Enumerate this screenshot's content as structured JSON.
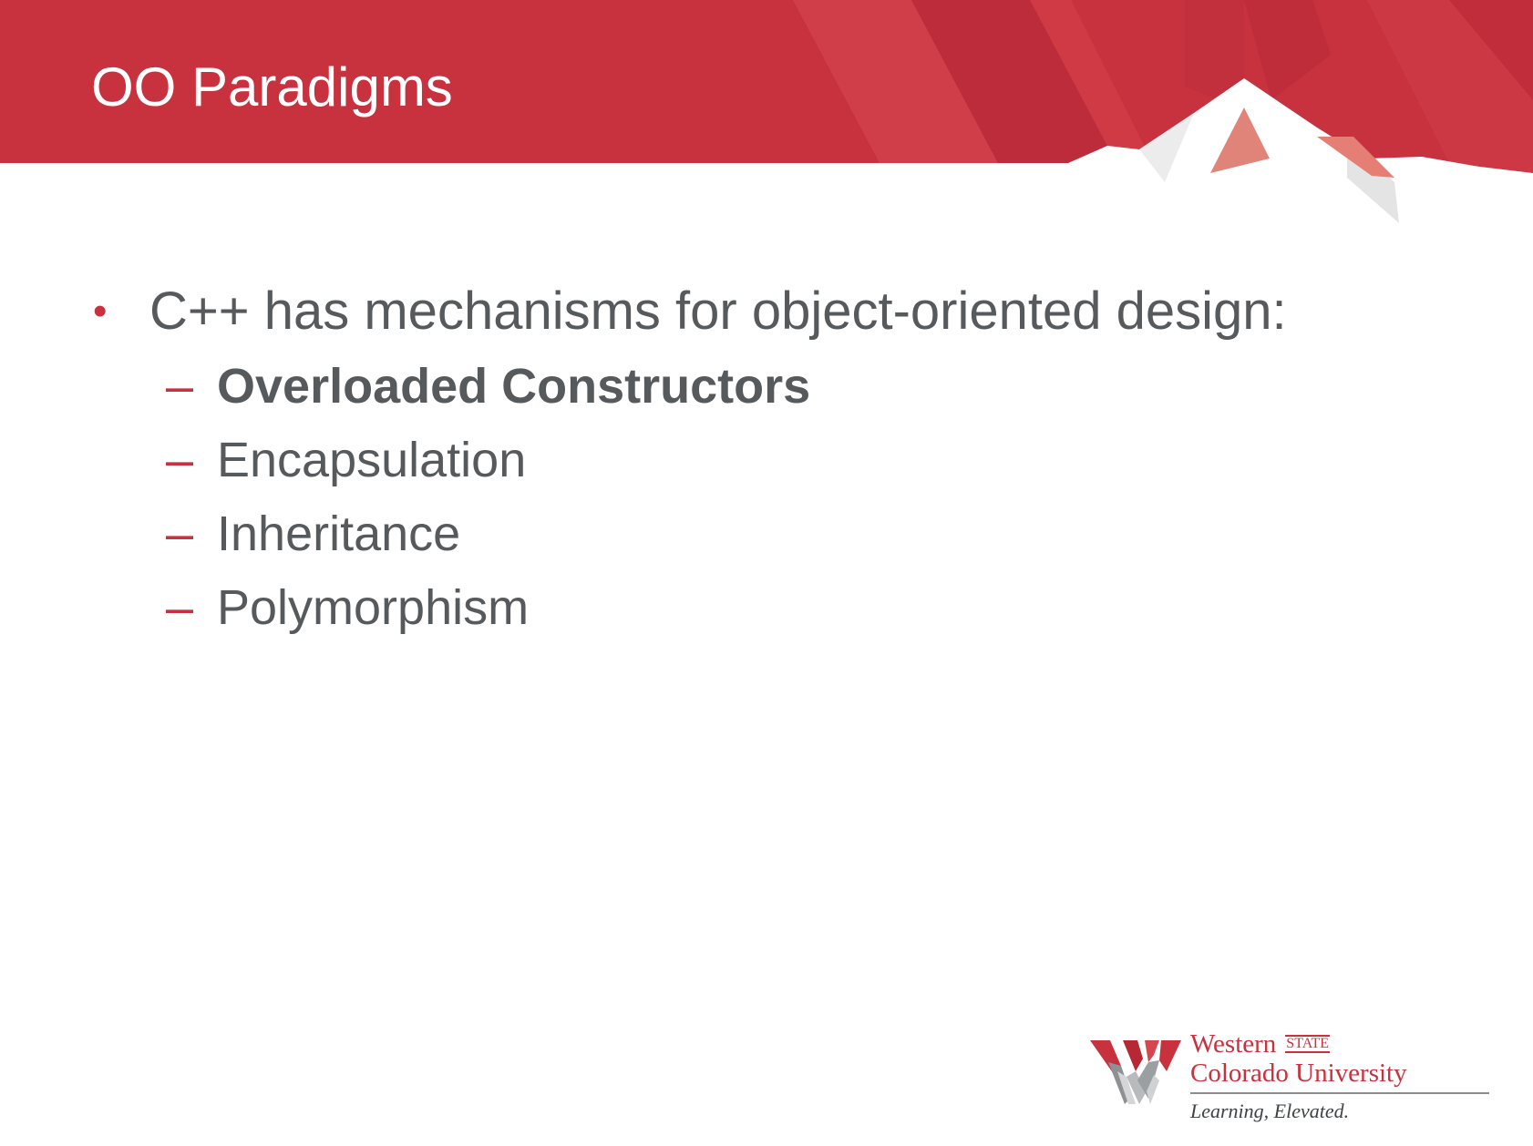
{
  "slide": {
    "title": "OO Paradigms",
    "bullet": {
      "marker": "•",
      "text": "C++ has mechanisms for object-oriented design:",
      "sub_marker": "–",
      "sub_items": [
        {
          "text": "Overloaded Constructors",
          "bold": true
        },
        {
          "text": "Encapsulation",
          "bold": false
        },
        {
          "text": "Inheritance",
          "bold": false
        },
        {
          "text": "Polymorphism",
          "bold": false
        }
      ]
    }
  },
  "logo": {
    "name_line1": "Western",
    "name_state": "STATE",
    "name_line2": "Colorado University",
    "tagline": "Learning, Elevated."
  },
  "colors": {
    "banner_red": "#c8313e",
    "text_gray": "#565a5c",
    "accent_red": "#c8313e"
  },
  "icons": {
    "logo_mark": "mountain-w-logo-icon"
  }
}
